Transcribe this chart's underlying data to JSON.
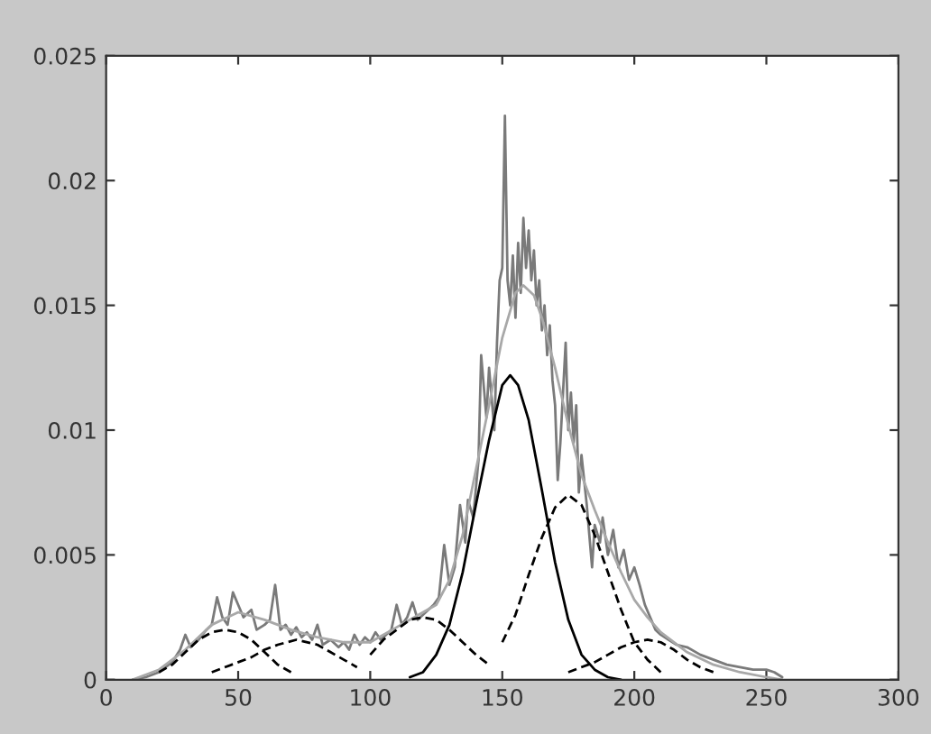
{
  "chart_data": {
    "type": "line",
    "xlim": [
      0,
      300
    ],
    "ylim": [
      0,
      0.025
    ],
    "xticks": [
      0,
      50,
      100,
      150,
      200,
      250,
      300
    ],
    "yticks": [
      0,
      0.005,
      0.01,
      0.015,
      0.02,
      0.025
    ],
    "grid": false,
    "legend": false,
    "marker": "none",
    "series": [
      {
        "color": "#7a7a7a",
        "line_style": "solid",
        "x": [
          10,
          15,
          20,
          25,
          28,
          30,
          32,
          35,
          38,
          40,
          42,
          44,
          46,
          48,
          50,
          52,
          55,
          57,
          60,
          62,
          64,
          66,
          68,
          70,
          72,
          74,
          76,
          78,
          80,
          82,
          85,
          88,
          90,
          92,
          94,
          96,
          98,
          100,
          102,
          104,
          106,
          108,
          110,
          112,
          114,
          116,
          118,
          120,
          122,
          124,
          126,
          128,
          130,
          132,
          134,
          136,
          137,
          139,
          141,
          142,
          144,
          145,
          147,
          148,
          149,
          150,
          151,
          152,
          153,
          154,
          155,
          156,
          157,
          158,
          159,
          160,
          161,
          162,
          163,
          164,
          165,
          166,
          167,
          168,
          169,
          170,
          171,
          172,
          174,
          175,
          176,
          177,
          178,
          179,
          180,
          182,
          184,
          185,
          187,
          188,
          190,
          192,
          194,
          196,
          198,
          200,
          202,
          204,
          206,
          208,
          210,
          213,
          216,
          220,
          225,
          230,
          235,
          240,
          245,
          250,
          253,
          256
        ],
        "values": [
          0,
          0.0001,
          0.0003,
          0.0007,
          0.0012,
          0.0018,
          0.0013,
          0.0016,
          0.002,
          0.0022,
          0.0033,
          0.0025,
          0.0022,
          0.0035,
          0.003,
          0.0025,
          0.0028,
          0.002,
          0.0022,
          0.0024,
          0.0038,
          0.002,
          0.0022,
          0.0018,
          0.0021,
          0.0017,
          0.0019,
          0.0016,
          0.0022,
          0.0014,
          0.0016,
          0.0013,
          0.0015,
          0.0012,
          0.0018,
          0.0014,
          0.0017,
          0.0015,
          0.0019,
          0.0016,
          0.0018,
          0.002,
          0.003,
          0.0022,
          0.0025,
          0.0031,
          0.0024,
          0.0026,
          0.0028,
          0.003,
          0.0033,
          0.0054,
          0.0038,
          0.0045,
          0.007,
          0.0055,
          0.0072,
          0.0065,
          0.0088,
          0.013,
          0.0105,
          0.0125,
          0.01,
          0.0135,
          0.016,
          0.0165,
          0.0226,
          0.016,
          0.015,
          0.017,
          0.0145,
          0.0175,
          0.0155,
          0.0185,
          0.0165,
          0.018,
          0.016,
          0.0172,
          0.015,
          0.016,
          0.014,
          0.015,
          0.013,
          0.0142,
          0.012,
          0.011,
          0.008,
          0.0095,
          0.0135,
          0.01,
          0.0115,
          0.0095,
          0.011,
          0.0075,
          0.009,
          0.007,
          0.0045,
          0.0062,
          0.0055,
          0.0065,
          0.005,
          0.006,
          0.0045,
          0.0052,
          0.004,
          0.0045,
          0.0038,
          0.003,
          0.0025,
          0.002,
          0.0018,
          0.0016,
          0.0014,
          0.0013,
          0.001,
          0.0008,
          0.0006,
          0.0005,
          0.0004,
          0.0004,
          0.0003,
          0.0001
        ]
      },
      {
        "color": "#a8a8a8",
        "line_style": "solid",
        "x": [
          10,
          20,
          30,
          40,
          50,
          60,
          70,
          80,
          90,
          100,
          110,
          120,
          125,
          130,
          135,
          140,
          145,
          150,
          155,
          158,
          162,
          165,
          170,
          175,
          180,
          185,
          190,
          195,
          200,
          205,
          210,
          220,
          230,
          240,
          250,
          256
        ],
        "values": [
          0,
          0.0004,
          0.0012,
          0.0022,
          0.0027,
          0.0024,
          0.002,
          0.0017,
          0.0015,
          0.0015,
          0.0021,
          0.0027,
          0.003,
          0.004,
          0.0058,
          0.0084,
          0.011,
          0.0137,
          0.0155,
          0.0158,
          0.0154,
          0.0145,
          0.0125,
          0.0102,
          0.0082,
          0.0068,
          0.0055,
          0.0043,
          0.0032,
          0.0025,
          0.0019,
          0.0011,
          0.0006,
          0.0003,
          0.0001,
          0
        ]
      },
      {
        "color": "#000000",
        "line_style": "dashed",
        "x": [
          20,
          25,
          30,
          35,
          40,
          45,
          50,
          55,
          60,
          65,
          70
        ],
        "values": [
          0.0003,
          0.0006,
          0.0011,
          0.0016,
          0.0019,
          0.002,
          0.0019,
          0.0016,
          0.0011,
          0.0006,
          0.0003
        ]
      },
      {
        "color": "#000000",
        "line_style": "dashed",
        "x": [
          40,
          50,
          55,
          60,
          65,
          72,
          80,
          85,
          90,
          95
        ],
        "values": [
          0.0003,
          0.0007,
          0.0009,
          0.0012,
          0.0014,
          0.0016,
          0.0014,
          0.0011,
          0.0008,
          0.0005
        ]
      },
      {
        "color": "#000000",
        "line_style": "dashed",
        "x": [
          100,
          105,
          110,
          115,
          120,
          125,
          130,
          135,
          140,
          145
        ],
        "values": [
          0.001,
          0.0016,
          0.002,
          0.0024,
          0.0025,
          0.0024,
          0.002,
          0.0015,
          0.001,
          0.0006
        ]
      },
      {
        "color": "#000000",
        "line_style": "solid",
        "x": [
          115,
          120,
          125,
          130,
          135,
          140,
          145,
          150,
          153,
          156,
          160,
          165,
          170,
          175,
          180,
          185,
          190,
          195
        ],
        "values": [
          0.0001,
          0.0003,
          0.001,
          0.0022,
          0.0043,
          0.007,
          0.0096,
          0.0118,
          0.0122,
          0.0118,
          0.0104,
          0.0076,
          0.0047,
          0.0024,
          0.001,
          0.0004,
          0.0001,
          0
        ]
      },
      {
        "color": "#000000",
        "line_style": "dashed",
        "x": [
          150,
          155,
          160,
          165,
          170,
          175,
          180,
          185,
          190,
          195,
          200,
          205,
          210
        ],
        "values": [
          0.0015,
          0.0026,
          0.0042,
          0.0057,
          0.0069,
          0.0074,
          0.007,
          0.0058,
          0.0043,
          0.0028,
          0.0015,
          0.0008,
          0.0003
        ]
      },
      {
        "color": "#000000",
        "line_style": "dashed",
        "x": [
          175,
          185,
          190,
          195,
          200,
          205,
          210,
          215,
          220,
          225,
          230
        ],
        "values": [
          0.0003,
          0.0007,
          0.001,
          0.0013,
          0.0015,
          0.0016,
          0.0015,
          0.0012,
          0.0008,
          0.0005,
          0.0003
        ]
      }
    ]
  }
}
